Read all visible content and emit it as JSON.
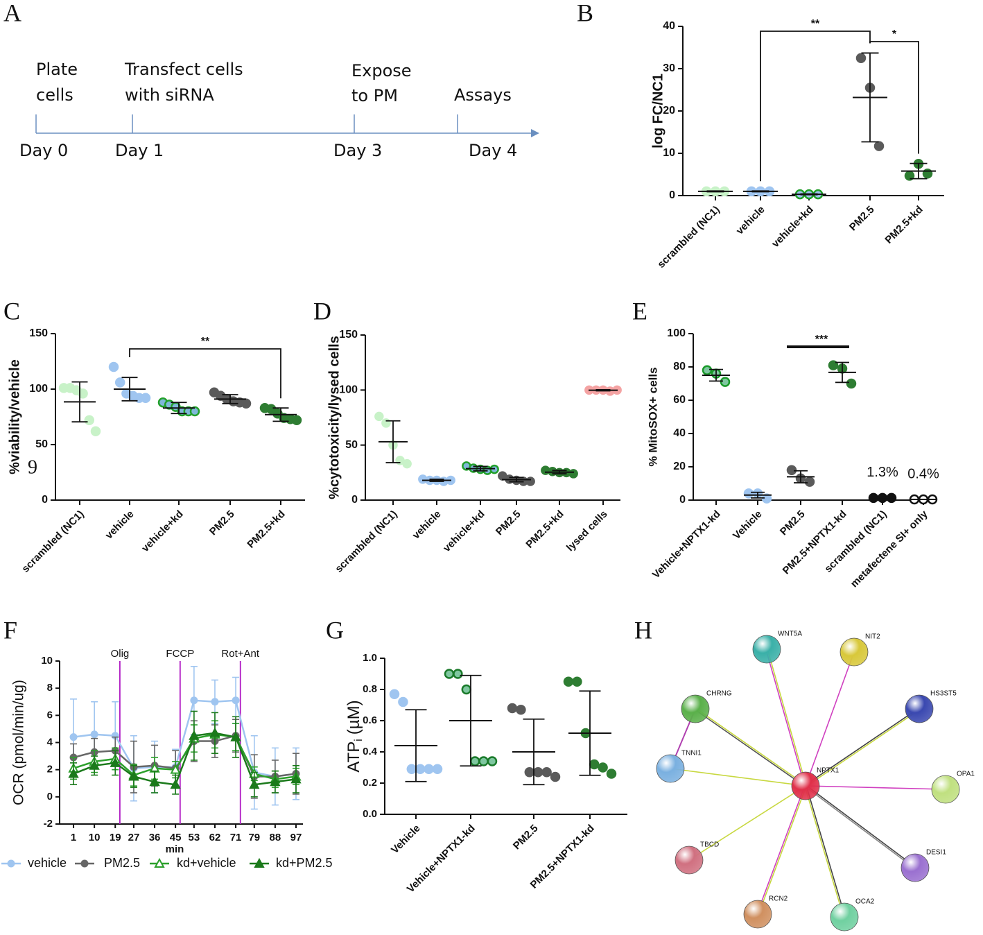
{
  "panel_labels": [
    "A",
    "B",
    "C",
    "D",
    "E",
    "F",
    "G",
    "H"
  ],
  "timeline": {
    "events": [
      {
        "label": [
          "Plate",
          "cells"
        ],
        "day": "Day 0"
      },
      {
        "label": [
          "Transfect cells",
          "with siRNA"
        ],
        "day": "Day 1"
      },
      {
        "label": [
          "Expose",
          "to PM"
        ],
        "day": "Day 3"
      },
      {
        "label": [
          "Assays"
        ],
        "day": "Day 4"
      }
    ]
  },
  "chart_data": [
    {
      "type": "dotplot",
      "ylabel": "log FC/NC1",
      "categories": [
        "scrambled (NC1)",
        "vehicle",
        "vehicle+kd",
        "PM2.5",
        "PM2.5+kd"
      ],
      "points": [
        [
          1,
          1,
          1
        ],
        [
          1,
          1,
          1
        ],
        [
          0.3,
          0.3,
          0.3
        ],
        [
          32.5,
          25.5,
          11.7
        ],
        [
          4.7,
          7.5,
          5.2
        ]
      ],
      "mean": [
        1,
        1,
        0.3,
        23.2,
        5.8
      ],
      "sd": [
        0.1,
        0.1,
        0.1,
        10.5,
        1.8
      ],
      "colors": [
        "#c8f2c8",
        "#9fc5f0",
        "#9fc5f0",
        "#5a5a5a",
        "#2e7d32"
      ],
      "edgecolors": [
        "#c8f2c8",
        "#9fc5f0",
        "#22a02a",
        "#5a5a5a",
        "#2e7d32"
      ],
      "ylim": [
        0,
        40
      ],
      "yticks": [
        0,
        10,
        20,
        30,
        40
      ],
      "significance": [
        {
          "text": "**",
          "between": [
            "vehicle",
            "PM2.5"
          ],
          "legs": true
        },
        {
          "text": "*",
          "between": [
            "PM2.5",
            "PM2.5+kd"
          ],
          "legs": true
        }
      ]
    },
    {
      "type": "dotplot",
      "ylabel": "%viability/vehicle",
      "categories": [
        "scrambled (NC1)",
        "vehicle",
        "vehicle+kd",
        "PM2.5",
        "PM2.5+kd"
      ],
      "points": [
        [
          101,
          101,
          99,
          96,
          72,
          62
        ],
        [
          120,
          106,
          96,
          94,
          92,
          92
        ],
        [
          88,
          86,
          84,
          80,
          80,
          80
        ],
        [
          97,
          94,
          91,
          89,
          88,
          87
        ],
        [
          83,
          82,
          78,
          74,
          73,
          72
        ]
      ],
      "mean": [
        88.5,
        100,
        83,
        91,
        77
      ],
      "sd": [
        18,
        10.5,
        5,
        4,
        6
      ],
      "colors": [
        "#c8f2c8",
        "#9fc5f0",
        "#7fb8d8",
        "#5a5a5a",
        "#2e7d32"
      ],
      "edgecolors": [
        "#c8f2c8",
        "#9fc5f0",
        "#22a02a",
        "#5a5a5a",
        "#2e7d32"
      ],
      "ylim": [
        0,
        150
      ],
      "yticks": [
        0,
        50,
        100,
        150
      ],
      "stray_text": "9",
      "significance": [
        {
          "text": "**",
          "between": [
            "vehicle",
            "PM2.5+kd"
          ],
          "legs": true
        }
      ]
    },
    {
      "type": "dotplot",
      "ylabel": "%cytotoxicity/lysed cells",
      "categories": [
        "scrambled (NC1)",
        "vehicle",
        "vehicle+kd",
        "PM2.5",
        "PM2.5+kd",
        "lysed cells"
      ],
      "points": [
        [
          76,
          70,
          50,
          36,
          33
        ],
        [
          19,
          18,
          18,
          17,
          18
        ],
        [
          31,
          29,
          28,
          27,
          28
        ],
        [
          22,
          19,
          18,
          17,
          17
        ],
        [
          27,
          26,
          25,
          25,
          24
        ],
        [
          100,
          100,
          100,
          99,
          100
        ]
      ],
      "mean": [
        53,
        18,
        28.6,
        18.6,
        25.4,
        99.8
      ],
      "sd": [
        19,
        1,
        2,
        2,
        1.5,
        0.5
      ],
      "colors": [
        "#c8f2c8",
        "#9fc5f0",
        "#7fb8d8",
        "#5a5a5a",
        "#2e7d32",
        "#f4a3a3"
      ],
      "edgecolors": [
        "#c8f2c8",
        "#9fc5f0",
        "#22a02a",
        "#5a5a5a",
        "#2e7d32",
        "#f4a3a3"
      ],
      "ylim": [
        0,
        150
      ],
      "yticks": [
        0,
        50,
        100,
        150
      ]
    },
    {
      "type": "dotplot",
      "ylabel": "% MitoSOX+ cells",
      "categories": [
        "Vehicle+NPTX1-kd",
        "Vehicle",
        "PM2.5",
        "PM2.5+NPTX1-kd",
        "scrambled (NC1)",
        "metafectene SI+ only"
      ],
      "points": [
        [
          78,
          76,
          71
        ],
        [
          4,
          4,
          1
        ],
        [
          18,
          13,
          11
        ],
        [
          81,
          79,
          70
        ],
        [
          1.3,
          1.3,
          1.3
        ],
        [
          0.4,
          0.4,
          0.4
        ]
      ],
      "mean": [
        75,
        3,
        14,
        76.7,
        1.3,
        0.4
      ],
      "sd": [
        3.5,
        1.7,
        3.6,
        6,
        0,
        0
      ],
      "value_labels": [
        null,
        null,
        null,
        null,
        "1.3%",
        "0.4%"
      ],
      "colors": [
        "#7fc7a0",
        "#9fc5f0",
        "#5a5a5a",
        "#2e7d32",
        "#111111",
        "#ffffff"
      ],
      "edgecolors": [
        "#1a9a2a",
        "#9fc5f0",
        "#5a5a5a",
        "#2e7d32",
        "#111111",
        "#111111"
      ],
      "ylim": [
        0,
        100
      ],
      "yticks": [
        0,
        20,
        40,
        60,
        80,
        100
      ],
      "significance": [
        {
          "text": "***",
          "between": [
            "PM2.5",
            "PM2.5+NPTX1-kd"
          ],
          "legs": false
        }
      ]
    },
    {
      "type": "line",
      "ylabel": "OCR (pmol/min/ug)",
      "xlabel": "min",
      "x": [
        1,
        10,
        19,
        27,
        36,
        45,
        53,
        62,
        71,
        79,
        88,
        97
      ],
      "xlim": [
        -5,
        100
      ],
      "xticks": [
        1,
        10,
        19,
        27,
        36,
        45,
        53,
        62,
        71,
        79,
        88,
        97
      ],
      "ylim": [
        -2,
        10
      ],
      "yticks": [
        -2,
        0,
        2,
        4,
        6,
        8,
        10
      ],
      "vlines": [
        {
          "text": "Olig",
          "x": 21
        },
        {
          "text": "FCCP",
          "x": 47
        },
        {
          "text": "Rot+Ant",
          "x": 73
        }
      ],
      "vline_color": "#b01cc4",
      "series": [
        {
          "name": "vehicle",
          "color": "#9fc5f0",
          "marker": "circle",
          "values": [
            4.4,
            4.6,
            4.5,
            2.1,
            2.2,
            2.2,
            7.1,
            7.0,
            7.1,
            1.8,
            1.5,
            1.7
          ],
          "errors": [
            2.8,
            2.4,
            2.5,
            2.4,
            1.9,
            1.3,
            2.5,
            1.6,
            1.7,
            2.7,
            2.1,
            1.9
          ]
        },
        {
          "name": "PM2.5",
          "color": "#666666",
          "marker": "circle",
          "values": [
            2.9,
            3.3,
            3.4,
            2.2,
            2.3,
            2.1,
            4.1,
            4.1,
            4.5,
            1.5,
            1.5,
            1.7
          ],
          "errors": [
            1,
            1,
            1,
            1.9,
            1.5,
            1.3,
            1.5,
            1.2,
            1.2,
            1.6,
            1.2,
            1.5
          ]
        },
        {
          "name": "kd+vehicle",
          "color": "#2ca02c",
          "marker": "triangle-open",
          "values": [
            2.1,
            2.6,
            2.8,
            1.6,
            2.1,
            2.0,
            4.3,
            4.6,
            4.4,
            1.7,
            1.3,
            1.5
          ],
          "errors": [
            0.8,
            0.8,
            0.8,
            0.8,
            0.8,
            0.6,
            1,
            1,
            1,
            0.5,
            0.6,
            0.6
          ]
        },
        {
          "name": "kd+PM2.5",
          "color": "#1b7a1b",
          "marker": "triangle",
          "values": [
            1.7,
            2.3,
            2.5,
            1.5,
            1.1,
            0.9,
            4.5,
            4.7,
            4.4,
            0.9,
            1.1,
            1.3
          ],
          "errors": [
            0.8,
            0.7,
            0.9,
            0.8,
            0.8,
            0.7,
            1.8,
            1.5,
            1.5,
            0.9,
            0.8,
            1.0
          ]
        }
      ]
    },
    {
      "type": "dotplot",
      "ylabel": "ATP",
      "ylabel_subscript": "i",
      "ylabel_unit": "(µM)",
      "categories": [
        "Vehicle",
        "Vehicle+NPTX1-kd",
        "PM2.5",
        "PM2.5+NPTX1-kd"
      ],
      "points": [
        [
          0.77,
          0.72,
          0.29,
          0.29,
          0.29,
          0.29
        ],
        [
          0.9,
          0.9,
          0.8,
          0.34,
          0.34,
          0.34
        ],
        [
          0.68,
          0.67,
          0.27,
          0.27,
          0.27,
          0.24
        ],
        [
          0.85,
          0.85,
          0.52,
          0.32,
          0.3,
          0.26
        ]
      ],
      "mean": [
        0.44,
        0.6,
        0.4,
        0.52
      ],
      "sd": [
        0.23,
        0.29,
        0.21,
        0.27
      ],
      "colors": [
        "#9fc5f0",
        "#7fc7a0",
        "#5a5a5a",
        "#2e7d32"
      ],
      "edgecolors": [
        "#9fc5f0",
        "#1a7a2a",
        "#5a5a5a",
        "#2e7d32"
      ],
      "ylim": [
        0,
        1
      ],
      "yticks": [
        {
          "value": 0,
          "label": "0.0"
        },
        0.2,
        0.4,
        0.6,
        0.8,
        {
          "value": 1,
          "label": "1.0"
        }
      ]
    }
  ],
  "network": {
    "nodes": [
      "NPTX1",
      "WNT5A",
      "NIT2",
      "CHRNG",
      "HS3ST5",
      "TNNI1",
      "OPA1",
      "TBCD",
      "DESI1",
      "RCN2",
      "OCA2"
    ]
  }
}
